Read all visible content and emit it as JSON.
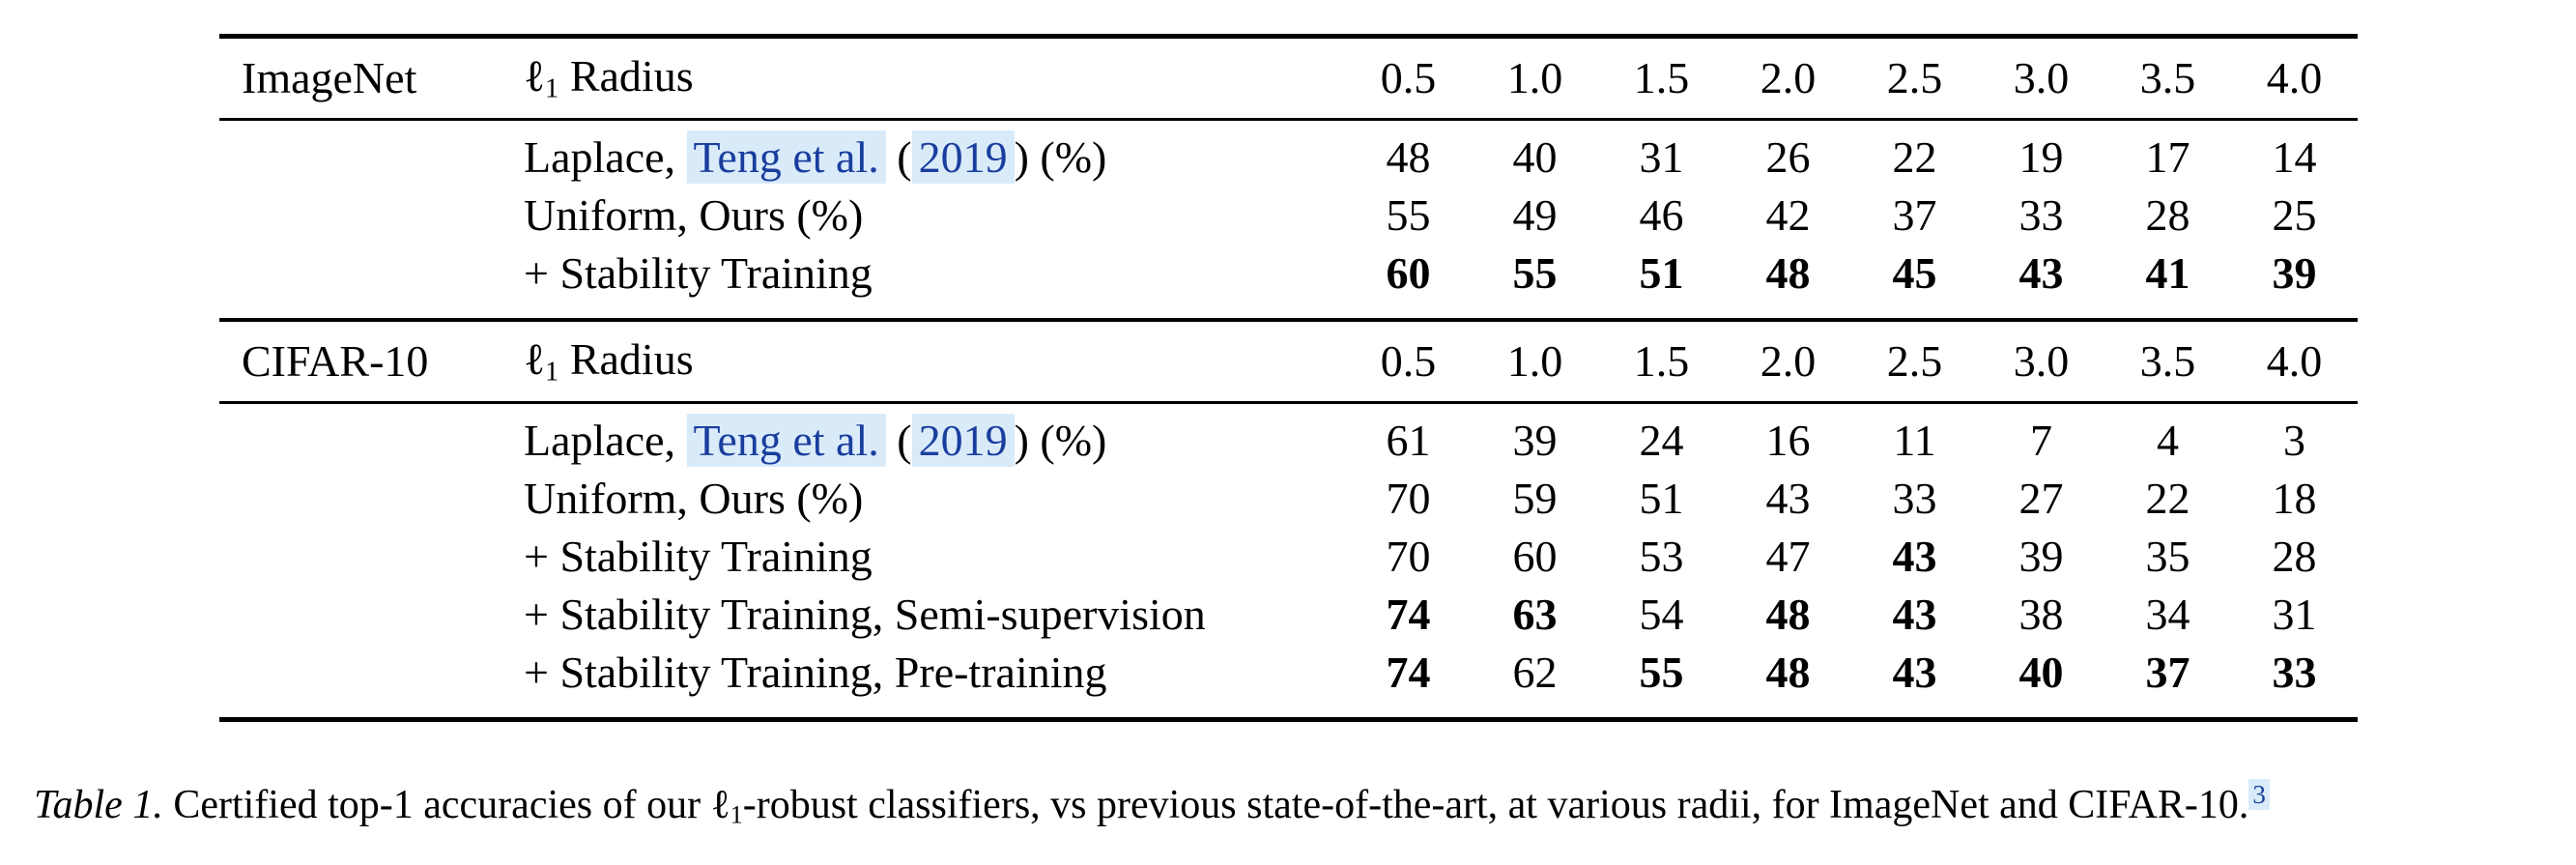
{
  "colors": {
    "text": "#000000",
    "rule": "#000000",
    "link_blue": "#1a3e9e",
    "link_highlight": "#d9ebf9",
    "background": "#ffffff"
  },
  "table": {
    "radius_symbol": "ℓ",
    "radius_subscript": "1",
    "radius_word": " Radius",
    "radii": [
      "0.5",
      "1.0",
      "1.5",
      "2.0",
      "2.5",
      "3.0",
      "3.5",
      "4.0"
    ],
    "sections": [
      {
        "dataset": "ImageNet",
        "rows": [
          {
            "parts": [
              {
                "t": "Laplace, ",
                "s": "plain"
              },
              {
                "t": "Teng et al.",
                "s": "link"
              },
              {
                "t": " (",
                "s": "plain"
              },
              {
                "t": "2019",
                "s": "link"
              },
              {
                "t": ") (%)",
                "s": "plain"
              }
            ],
            "values": [
              "48",
              "40",
              "31",
              "26",
              "22",
              "19",
              "17",
              "14"
            ],
            "bold": [
              false,
              false,
              false,
              false,
              false,
              false,
              false,
              false
            ]
          },
          {
            "parts": [
              {
                "t": "Uniform, Ours (%)",
                "s": "plain"
              }
            ],
            "values": [
              "55",
              "49",
              "46",
              "42",
              "37",
              "33",
              "28",
              "25"
            ],
            "bold": [
              false,
              false,
              false,
              false,
              false,
              false,
              false,
              false
            ]
          },
          {
            "parts": [
              {
                "t": "+ Stability Training",
                "s": "plain"
              }
            ],
            "values": [
              "60",
              "55",
              "51",
              "48",
              "45",
              "43",
              "41",
              "39"
            ],
            "bold": [
              true,
              true,
              true,
              true,
              true,
              true,
              true,
              true
            ]
          }
        ]
      },
      {
        "dataset": "CIFAR-10",
        "rows": [
          {
            "parts": [
              {
                "t": "Laplace, ",
                "s": "plain"
              },
              {
                "t": "Teng et al.",
                "s": "link"
              },
              {
                "t": " (",
                "s": "plain"
              },
              {
                "t": "2019",
                "s": "link"
              },
              {
                "t": ") (%)",
                "s": "plain"
              }
            ],
            "values": [
              "61",
              "39",
              "24",
              "16",
              "11",
              "7",
              "4",
              "3"
            ],
            "bold": [
              false,
              false,
              false,
              false,
              false,
              false,
              false,
              false
            ]
          },
          {
            "parts": [
              {
                "t": "Uniform, Ours (%)",
                "s": "plain"
              }
            ],
            "values": [
              "70",
              "59",
              "51",
              "43",
              "33",
              "27",
              "22",
              "18"
            ],
            "bold": [
              false,
              false,
              false,
              false,
              false,
              false,
              false,
              false
            ]
          },
          {
            "parts": [
              {
                "t": "+ Stability Training",
                "s": "plain"
              }
            ],
            "values": [
              "70",
              "60",
              "53",
              "47",
              "43",
              "39",
              "35",
              "28"
            ],
            "bold": [
              false,
              false,
              false,
              false,
              true,
              false,
              false,
              false
            ]
          },
          {
            "parts": [
              {
                "t": "+ Stability Training, Semi-supervision",
                "s": "plain"
              }
            ],
            "values": [
              "74",
              "63",
              "54",
              "48",
              "43",
              "38",
              "34",
              "31"
            ],
            "bold": [
              true,
              true,
              false,
              true,
              true,
              false,
              false,
              false
            ]
          },
          {
            "parts": [
              {
                "t": "+ Stability Training, Pre-training",
                "s": "plain"
              }
            ],
            "values": [
              "74",
              "62",
              "55",
              "48",
              "43",
              "40",
              "37",
              "33"
            ],
            "bold": [
              true,
              false,
              true,
              true,
              true,
              true,
              true,
              true
            ]
          }
        ]
      }
    ]
  },
  "caption": {
    "parts": [
      {
        "t": "Table 1.",
        "s": "italic"
      },
      {
        "t": " Certified top-1 accuracies of our ",
        "s": "plain"
      },
      {
        "t": "ℓ",
        "s": "plain"
      },
      {
        "t": "1",
        "s": "sub"
      },
      {
        "t": "-robust classifiers, vs previous state-of-the-art, at various radii, for ImageNet and CIFAR-10.",
        "s": "plain"
      },
      {
        "t": "3",
        "s": "footnote"
      }
    ]
  }
}
